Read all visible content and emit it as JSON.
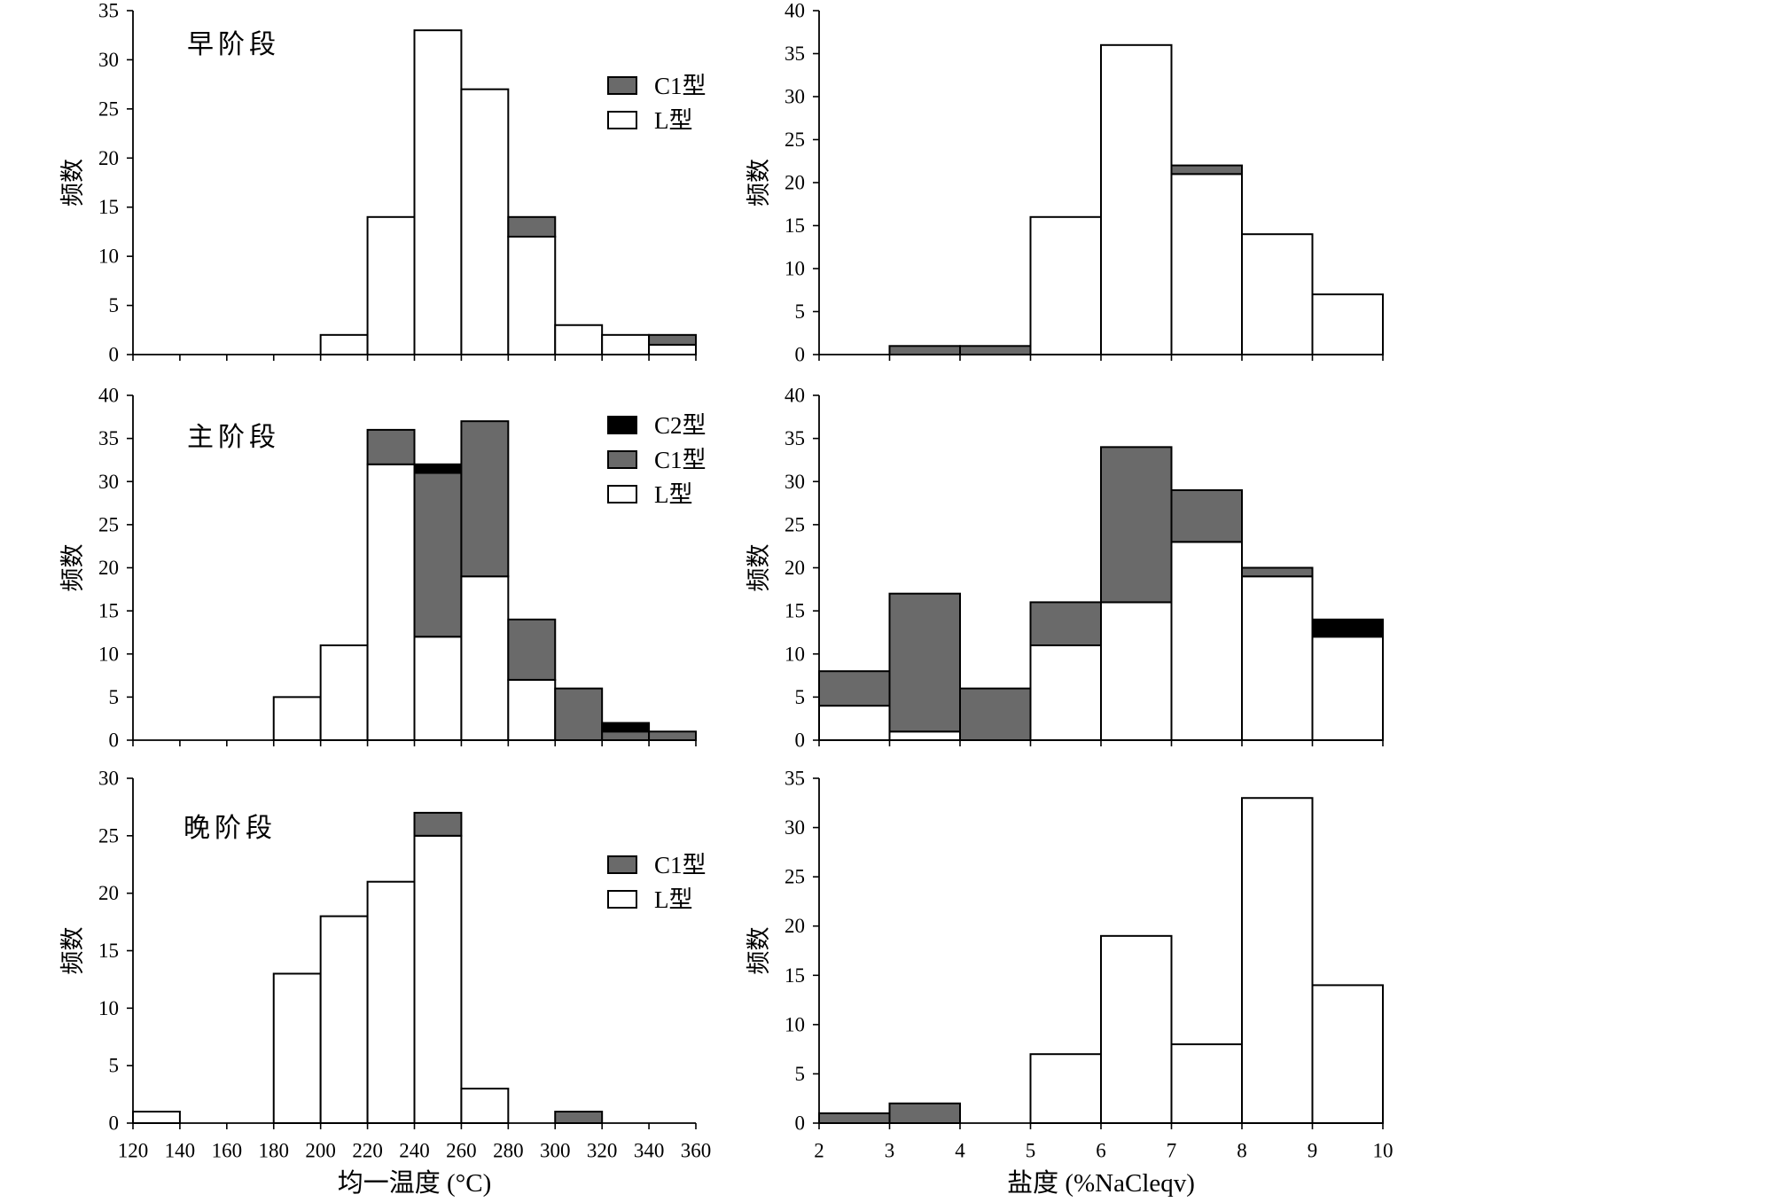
{
  "chart_data": [
    {
      "panel": "early-stage-homogenization-temperature",
      "type": "bar",
      "stacked": true,
      "stage_label": "早阶段",
      "ylabel": "频数",
      "xlim": [
        120,
        360
      ],
      "ylim": [
        0,
        35
      ],
      "yticks": [
        0,
        5,
        10,
        15,
        20,
        25,
        30,
        35
      ],
      "bin_edges": [
        120,
        140,
        160,
        180,
        200,
        220,
        240,
        260,
        280,
        300,
        320,
        340,
        360
      ],
      "show_xtick_labels": false,
      "series": [
        {
          "name": "L型",
          "fill": "#ffffff",
          "values": [
            0,
            0,
            0,
            0,
            2,
            14,
            33,
            27,
            12,
            3,
            2,
            1
          ]
        },
        {
          "name": "C1型",
          "fill": "#6a6a6a",
          "values": [
            0,
            0,
            0,
            0,
            0,
            0,
            0,
            0,
            2,
            0,
            0,
            1
          ]
        }
      ],
      "legend": {
        "position": "top-right",
        "entries": [
          "C1型",
          "L型"
        ]
      }
    },
    {
      "panel": "early-stage-salinity",
      "type": "bar",
      "stacked": true,
      "ylabel": "频数",
      "xlim": [
        2,
        10
      ],
      "ylim": [
        0,
        40
      ],
      "yticks": [
        0,
        5,
        10,
        15,
        20,
        25,
        30,
        35,
        40
      ],
      "bin_edges": [
        2,
        3,
        4,
        5,
        6,
        7,
        8,
        9,
        10
      ],
      "show_xtick_labels": false,
      "series": [
        {
          "name": "L型",
          "fill": "#ffffff",
          "values": [
            0,
            0,
            0,
            16,
            36,
            21,
            14,
            7
          ]
        },
        {
          "name": "C1型",
          "fill": "#6a6a6a",
          "values": [
            0,
            1,
            1,
            0,
            0,
            1,
            0,
            0
          ]
        }
      ]
    },
    {
      "panel": "main-stage-homogenization-temperature",
      "type": "bar",
      "stacked": true,
      "stage_label": "主阶段",
      "ylabel": "频数",
      "xlim": [
        120,
        360
      ],
      "ylim": [
        0,
        40
      ],
      "yticks": [
        0,
        5,
        10,
        15,
        20,
        25,
        30,
        35,
        40
      ],
      "bin_edges": [
        120,
        140,
        160,
        180,
        200,
        220,
        240,
        260,
        280,
        300,
        320,
        340,
        360
      ],
      "show_xtick_labels": false,
      "series": [
        {
          "name": "L型",
          "fill": "#ffffff",
          "values": [
            0,
            0,
            0,
            5,
            11,
            32,
            12,
            19,
            7,
            0,
            0,
            0
          ]
        },
        {
          "name": "C1型",
          "fill": "#6a6a6a",
          "values": [
            0,
            0,
            0,
            0,
            0,
            4,
            19,
            18,
            7,
            6,
            1,
            1
          ]
        },
        {
          "name": "C2型",
          "fill": "#000000",
          "values": [
            0,
            0,
            0,
            0,
            0,
            0,
            1,
            0,
            0,
            0,
            1,
            0
          ]
        }
      ],
      "legend": {
        "position": "top-right",
        "entries": [
          "C2型",
          "C1型",
          "L型"
        ]
      }
    },
    {
      "panel": "main-stage-salinity",
      "type": "bar",
      "stacked": true,
      "ylabel": "频数",
      "xlim": [
        2,
        10
      ],
      "ylim": [
        0,
        40
      ],
      "yticks": [
        0,
        5,
        10,
        15,
        20,
        25,
        30,
        35,
        40
      ],
      "bin_edges": [
        2,
        3,
        4,
        5,
        6,
        7,
        8,
        9,
        10
      ],
      "show_xtick_labels": false,
      "series": [
        {
          "name": "L型",
          "fill": "#ffffff",
          "values": [
            4,
            1,
            0,
            11,
            16,
            23,
            19,
            12
          ]
        },
        {
          "name": "C1型",
          "fill": "#6a6a6a",
          "values": [
            4,
            16,
            6,
            5,
            18,
            6,
            1,
            0
          ]
        },
        {
          "name": "C2型",
          "fill": "#000000",
          "values": [
            0,
            0,
            0,
            0,
            0,
            0,
            0,
            2
          ]
        }
      ]
    },
    {
      "panel": "late-stage-homogenization-temperature",
      "type": "bar",
      "stacked": true,
      "stage_label": "晚阶段",
      "xlabel": "均一温度 (°C)",
      "ylabel": "频数",
      "xlim": [
        120,
        360
      ],
      "ylim": [
        0,
        30
      ],
      "yticks": [
        0,
        5,
        10,
        15,
        20,
        25,
        30
      ],
      "bin_edges": [
        120,
        140,
        160,
        180,
        200,
        220,
        240,
        260,
        280,
        300,
        320,
        340,
        360
      ],
      "show_xtick_labels": true,
      "series": [
        {
          "name": "L型",
          "fill": "#ffffff",
          "values": [
            1,
            0,
            0,
            13,
            18,
            21,
            25,
            3,
            0,
            0,
            0,
            0
          ]
        },
        {
          "name": "C1型",
          "fill": "#6a6a6a",
          "values": [
            0,
            0,
            0,
            0,
            0,
            0,
            2,
            0,
            0,
            1,
            0,
            0
          ]
        }
      ],
      "legend": {
        "position": "right",
        "entries": [
          "C1型",
          "L型"
        ]
      }
    },
    {
      "panel": "late-stage-salinity",
      "type": "bar",
      "stacked": true,
      "xlabel": "盐度 (%NaCleqv)",
      "ylabel": "频数",
      "xlim": [
        2,
        10
      ],
      "ylim": [
        0,
        35
      ],
      "yticks": [
        0,
        5,
        10,
        15,
        20,
        25,
        30,
        35
      ],
      "bin_edges": [
        2,
        3,
        4,
        5,
        6,
        7,
        8,
        9,
        10
      ],
      "show_xtick_labels": true,
      "series": [
        {
          "name": "L型",
          "fill": "#ffffff",
          "values": [
            0,
            0,
            0,
            7,
            19,
            8,
            33,
            14
          ]
        },
        {
          "name": "C1型",
          "fill": "#6a6a6a",
          "values": [
            1,
            2,
            0,
            0,
            0,
            0,
            0,
            0
          ]
        }
      ]
    }
  ]
}
